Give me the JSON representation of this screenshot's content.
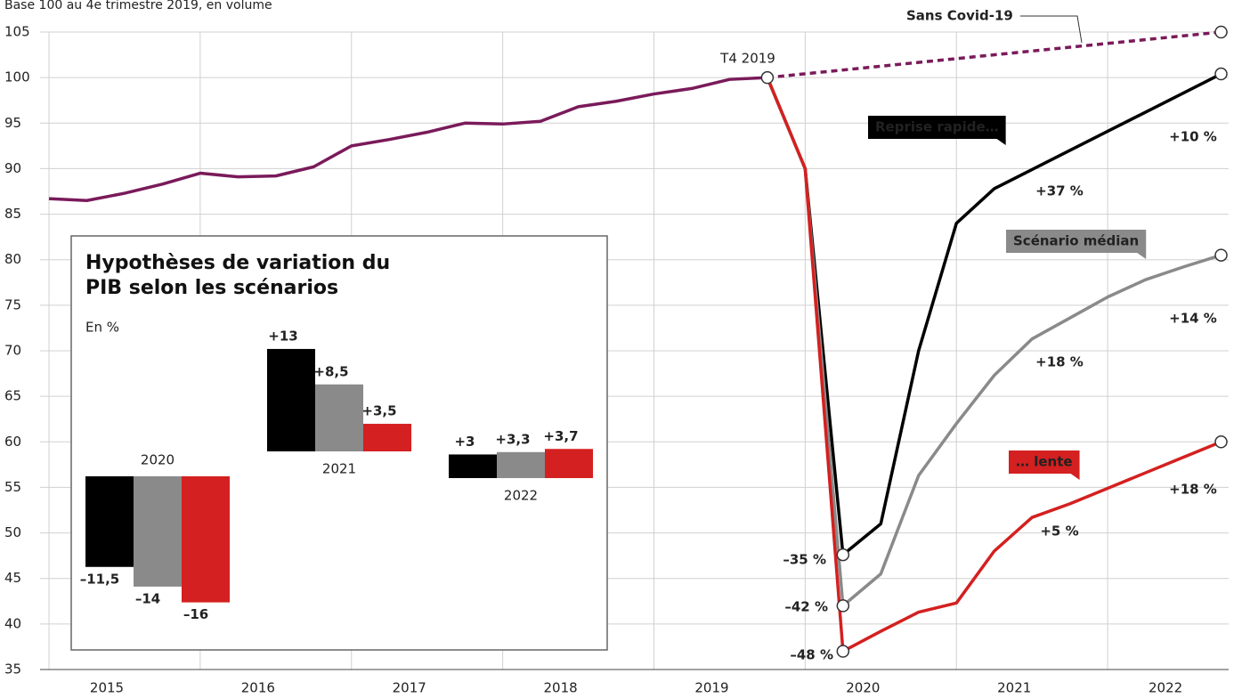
{
  "chart_data": [
    {
      "type": "line",
      "subtitle": "Base 100 au 4e trimestre 2019, en volume",
      "xlim": [
        2015,
        2022.8
      ],
      "xticks": [
        {
          "value": 2015,
          "label": "2015"
        },
        {
          "value": 2016,
          "label": "2016"
        },
        {
          "value": 2017,
          "label": "2017"
        },
        {
          "value": 2018,
          "label": "2018"
        },
        {
          "value": 2019,
          "label": "2019"
        },
        {
          "value": 2020,
          "label": "2020"
        },
        {
          "value": 2021,
          "label": "2021"
        },
        {
          "value": 2022,
          "label": "2022"
        }
      ],
      "ylim": [
        35,
        105
      ],
      "yticks": [
        35,
        40,
        45,
        50,
        55,
        60,
        65,
        70,
        75,
        80,
        85,
        90,
        95,
        100,
        105
      ],
      "grid": true,
      "series": [
        {
          "color": "#7a1a5a",
          "x": [
            2015,
            2015.25,
            2015.5,
            2015.75,
            2016,
            2016.25,
            2016.5,
            2016.75,
            2017,
            2017.25,
            2017.5,
            2017.75,
            2018,
            2018.25,
            2018.5,
            2018.75,
            2019,
            2019.25,
            2019.5,
            2019.75
          ],
          "values": [
            86.7,
            86.5,
            87.3,
            88.3,
            89.5,
            89.1,
            89.2,
            90.2,
            92.5,
            93.2,
            94.0,
            95.0,
            94.9,
            95.2,
            96.8,
            97.4,
            98.2,
            98.8,
            99.8,
            100
          ]
        },
        {
          "name": "Sans Covid-19",
          "color": "#7a1a5a",
          "dash": true,
          "x": [
            2019.75,
            2022.75
          ],
          "values": [
            100,
            105
          ]
        },
        {
          "name": "Reprise rapide…",
          "color": "#000000",
          "x": [
            2019.75,
            2020,
            2020.25,
            2020.5,
            2020.75,
            2021,
            2021.25,
            2021.5,
            2021.75,
            2022,
            2022.25,
            2022.5,
            2022.75
          ],
          "values": [
            100,
            90,
            47.6,
            51,
            70,
            84,
            87.8,
            89.9,
            92.0,
            94.1,
            96.2,
            98.3,
            100.4
          ]
        },
        {
          "name": "Scénario médian",
          "color": "#8a8a8a",
          "x": [
            2019.75,
            2020,
            2020.25,
            2020.5,
            2020.75,
            2021,
            2021.25,
            2021.5,
            2021.75,
            2022,
            2022.25,
            2022.5,
            2022.75
          ],
          "values": [
            100,
            90,
            42,
            45.5,
            56.3,
            62,
            67.3,
            71.3,
            73.6,
            75.9,
            77.8,
            79.2,
            80.5
          ]
        },
        {
          "name": "… lente",
          "color": "#d42020",
          "x": [
            2019.75,
            2020,
            2020.25,
            2020.5,
            2020.75,
            2021,
            2021.25,
            2021.5,
            2021.75,
            2022,
            2022.25,
            2022.5,
            2022.75
          ],
          "values": [
            100,
            90,
            37,
            39.2,
            41.3,
            42.3,
            48,
            51.7,
            53.2,
            54.9,
            56.6,
            58.3,
            60
          ]
        }
      ],
      "annotations": [
        "T4 2019",
        "–35 %",
        "–42 %",
        "–48 %",
        "+10 %",
        "+37 %",
        "+14 %",
        "+18 %",
        "+18 %",
        "+5 %"
      ]
    },
    {
      "type": "bar",
      "title": "Hypothèses de variation du PIB selon les scénarios",
      "subtitle": "En %",
      "categories": [
        "2020",
        "2021",
        "2022"
      ],
      "series": [
        {
          "color": "#000000",
          "values": [
            -11.5,
            13,
            3
          ],
          "value_labels": [
            "–11,5",
            "+13",
            "+3"
          ]
        },
        {
          "color": "#8a8a8a",
          "values": [
            -14,
            8.5,
            3.3
          ],
          "value_labels": [
            "–14",
            "+8,5",
            "+3,3"
          ]
        },
        {
          "color": "#d42020",
          "values": [
            -16,
            3.5,
            3.7
          ],
          "value_labels": [
            "–16",
            "+3,5",
            "+3,7"
          ]
        }
      ]
    }
  ]
}
